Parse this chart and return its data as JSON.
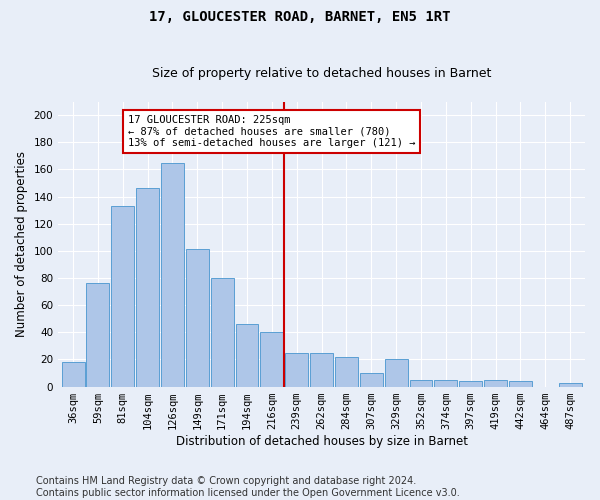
{
  "title": "17, GLOUCESTER ROAD, BARNET, EN5 1RT",
  "subtitle": "Size of property relative to detached houses in Barnet",
  "xlabel": "Distribution of detached houses by size in Barnet",
  "ylabel": "Number of detached properties",
  "bar_labels": [
    "36sqm",
    "59sqm",
    "81sqm",
    "104sqm",
    "126sqm",
    "149sqm",
    "171sqm",
    "194sqm",
    "216sqm",
    "239sqm",
    "262sqm",
    "284sqm",
    "307sqm",
    "329sqm",
    "352sqm",
    "374sqm",
    "397sqm",
    "419sqm",
    "442sqm",
    "464sqm",
    "487sqm"
  ],
  "bar_values": [
    18,
    76,
    133,
    146,
    165,
    101,
    80,
    46,
    40,
    25,
    25,
    22,
    10,
    20,
    5,
    5,
    4,
    5,
    4,
    0,
    3
  ],
  "bar_color": "#aec6e8",
  "bar_edgecolor": "#5a9fd4",
  "vline_pos": 8.5,
  "vline_color": "#cc0000",
  "annotation_text": "17 GLOUCESTER ROAD: 225sqm\n← 87% of detached houses are smaller (780)\n13% of semi-detached houses are larger (121) →",
  "annotation_box_color": "#ffffff",
  "annotation_box_edgecolor": "#cc0000",
  "ylim": [
    0,
    210
  ],
  "yticks": [
    0,
    20,
    40,
    60,
    80,
    100,
    120,
    140,
    160,
    180,
    200
  ],
  "footer": "Contains HM Land Registry data © Crown copyright and database right 2024.\nContains public sector information licensed under the Open Government Licence v3.0.",
  "background_color": "#e8eef8",
  "grid_color": "#ffffff",
  "title_fontsize": 10,
  "subtitle_fontsize": 9,
  "axis_label_fontsize": 8.5,
  "tick_fontsize": 7.5,
  "annotation_fontsize": 7.5,
  "footer_fontsize": 7
}
